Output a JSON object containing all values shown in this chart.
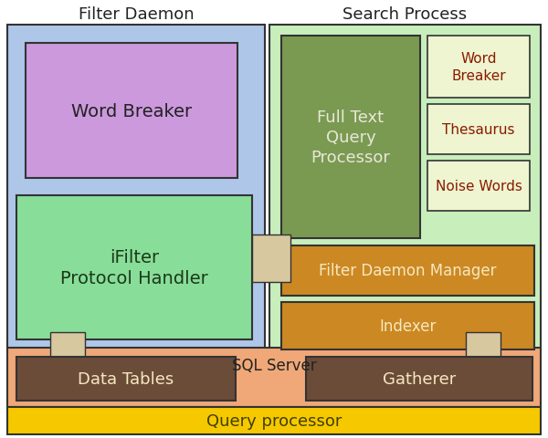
{
  "title_filter_daemon": "Filter Daemon",
  "title_search_process": "Search Process",
  "title_sql_server": "SQL Server",
  "labels": {
    "word_breaker_left": "Word Breaker",
    "ifilter": "iFilter\nProtocol Handler",
    "full_text": "Full Text\nQuery\nProcessor",
    "word_breaker_right": "Word\nBreaker",
    "thesaurus": "Thesaurus",
    "noise_words": "Noise Words",
    "filter_daemon_mgr": "Filter Daemon Manager",
    "indexer": "Indexer",
    "data_tables": "Data Tables",
    "gatherer": "Gatherer",
    "query_processor": "Query processor"
  },
  "colors": {
    "filter_daemon_bg": "#aec6e8",
    "search_process_bg": "#c8eebc",
    "word_breaker_left_fill": "#cc99dd",
    "ifilter_fill": "#88dd99",
    "full_text_fill": "#7a9a52",
    "small_boxes_fill": "#eef5d0",
    "filter_daemon_mgr_fill": "#cc8822",
    "indexer_fill": "#cc8822",
    "sql_server_bg": "#f0a878",
    "data_tables_fill": "#6b4c38",
    "gatherer_fill": "#6b4c38",
    "query_processor_fill": "#f5c800",
    "connector_fill": "#d8c8a0",
    "border_dark": "#333333",
    "border_medium": "#555555",
    "text_dark_red": "#8b1a00",
    "text_cream": "#f5e8c0",
    "text_dark": "#222222",
    "text_olive": "#404000",
    "text_white": "#e8e8d8",
    "text_green_dark": "#1a3a1a"
  },
  "fig_width": 6.0,
  "fig_height": 4.81
}
